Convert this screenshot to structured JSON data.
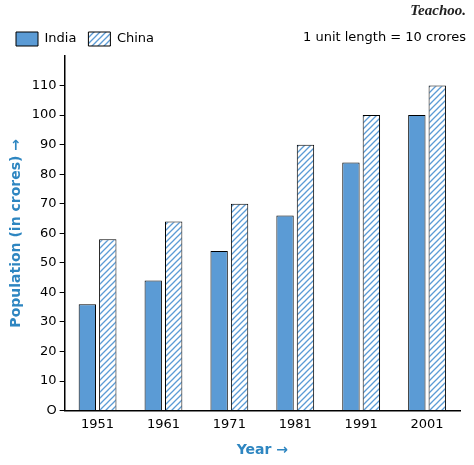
{
  "chart_data": {
    "type": "bar",
    "x_label": "Year →",
    "y_label": "Population (in crores) →",
    "annotations": [
      "1 unit length = 10 crores",
      "Teachoo."
    ],
    "categories": [
      "1951",
      "1961",
      "1971",
      "1981",
      "1991",
      "2001"
    ],
    "series": [
      {
        "name": "India",
        "color": "#5b9bd5",
        "marker": "solid",
        "values": [
          36,
          44,
          54,
          66,
          84,
          100
        ]
      },
      {
        "name": "China",
        "color": "#5b9bd5",
        "marker": "hatch",
        "values": [
          58,
          64,
          70,
          90,
          100,
          110
        ]
      }
    ],
    "ylim": [
      0,
      120
    ],
    "yticks": [
      {
        "value": 0,
        "label": "O"
      },
      10,
      20,
      30,
      40,
      50,
      60,
      70,
      80,
      90,
      100,
      110
    ],
    "grid": false,
    "legend": "top"
  }
}
